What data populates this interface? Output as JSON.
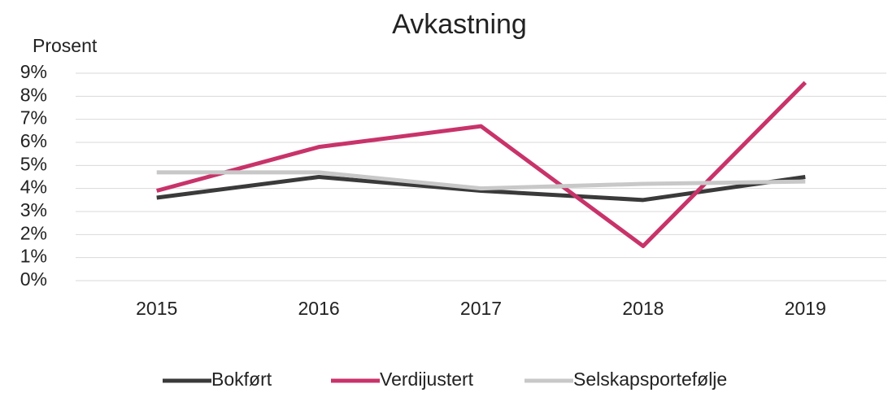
{
  "chart_data": {
    "type": "line",
    "title": "Avkastning",
    "y_label": "Prosent",
    "categories": [
      "2015",
      "2016",
      "2017",
      "2018",
      "2019"
    ],
    "series": [
      {
        "name": "Bokført",
        "color": "#3a3a3a",
        "values": [
          3.6,
          4.5,
          3.9,
          3.5,
          4.5
        ]
      },
      {
        "name": "Verdijustert",
        "color": "#c8336a",
        "values": [
          3.9,
          5.8,
          6.7,
          1.5,
          8.6
        ]
      },
      {
        "name": "Selskapsportefølje",
        "color": "#c8c8c8",
        "values": [
          4.7,
          4.7,
          4.0,
          4.2,
          4.3
        ]
      }
    ],
    "ylim": [
      0,
      9
    ],
    "yticks": [
      {
        "value": 0,
        "label": "0%"
      },
      {
        "value": 1,
        "label": "1%"
      },
      {
        "value": 2,
        "label": "2%"
      },
      {
        "value": 3,
        "label": "3%"
      },
      {
        "value": 4,
        "label": "4%"
      },
      {
        "value": 5,
        "label": "5%"
      },
      {
        "value": 6,
        "label": "6%"
      },
      {
        "value": 7,
        "label": "7%"
      },
      {
        "value": 8,
        "label": "8%"
      },
      {
        "value": 9,
        "label": "9%"
      }
    ],
    "grid": true,
    "legend": "bottom"
  }
}
